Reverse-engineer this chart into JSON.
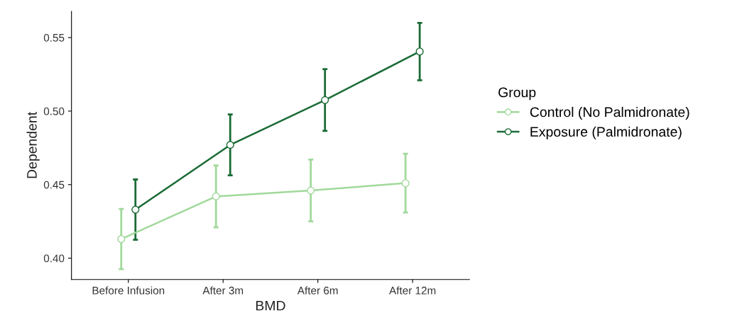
{
  "chart_data": {
    "type": "line",
    "xlabel": "BMD",
    "ylabel": "Dependent",
    "legend_title": "Group",
    "categories": [
      "Before Infusion",
      "After 3m",
      "After 6m",
      "After 12m"
    ],
    "series": [
      {
        "name": "Control (No Palmidronate)",
        "color": "#a1d99b",
        "values": [
          0.413,
          0.442,
          0.446,
          0.451
        ],
        "errors": [
          0.0205,
          0.021,
          0.021,
          0.02
        ]
      },
      {
        "name": "Exposure (Palmidronate)",
        "color": "#1a6b35",
        "values": [
          0.433,
          0.477,
          0.5075,
          0.5405
        ],
        "errors": [
          0.0205,
          0.0207,
          0.021,
          0.0195
        ]
      }
    ],
    "ylim": [
      0.3855,
      0.5678
    ],
    "yticks": [
      {
        "value": 0.4,
        "label": "0.40"
      },
      {
        "value": 0.45,
        "label": "0.45"
      },
      {
        "value": 0.5,
        "label": "0.50"
      },
      {
        "value": 0.55,
        "label": "0.55"
      }
    ],
    "grid": false,
    "legend": "right",
    "marker": "circle",
    "line_style": "solid"
  }
}
